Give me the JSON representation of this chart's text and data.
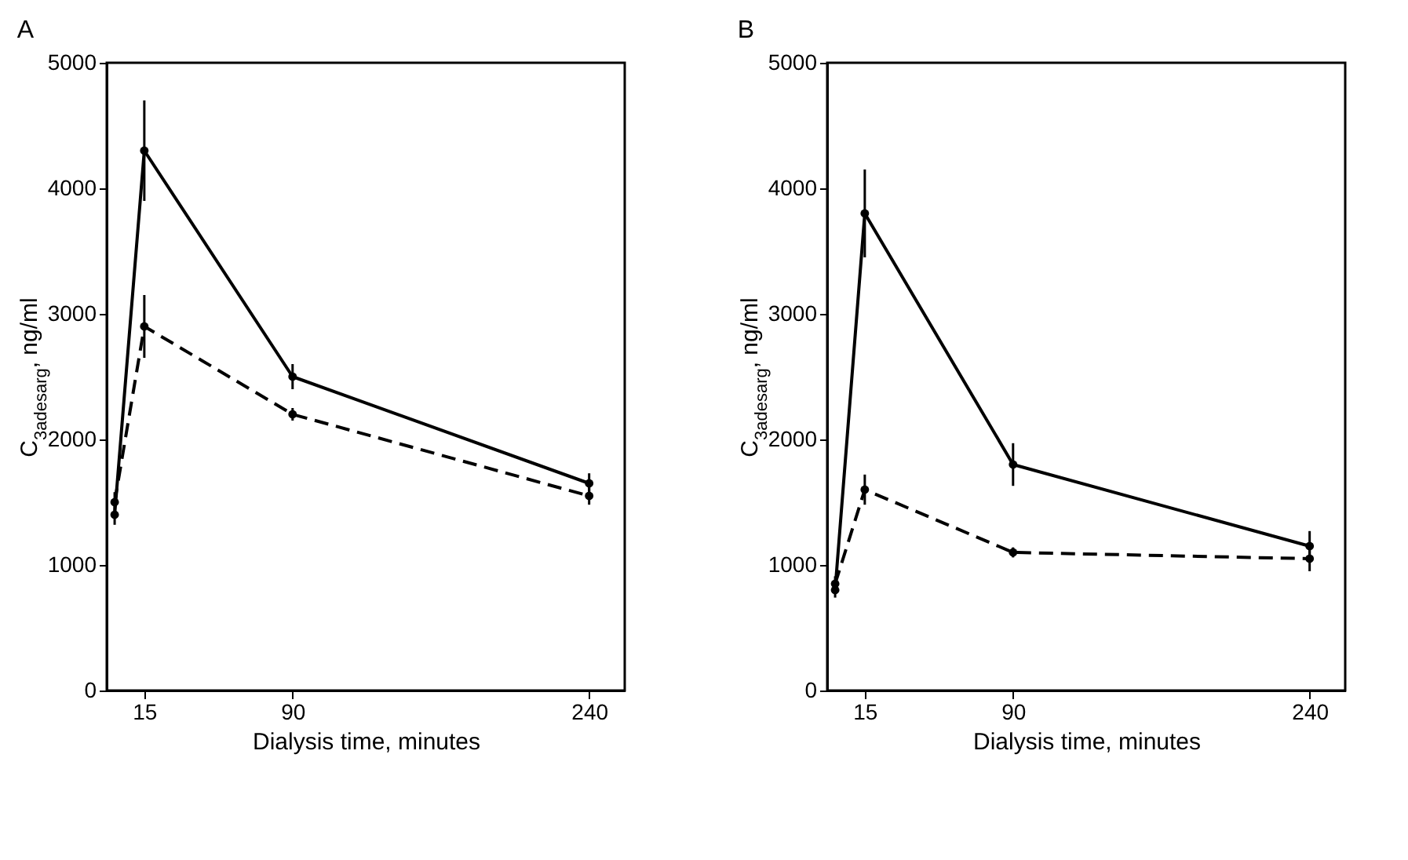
{
  "chart_data": [
    {
      "type": "line",
      "title": "A",
      "xlabel": "Dialysis time, minutes",
      "ylabel": "C$_{3adesarg}$, ng/ml",
      "x": [
        0,
        15,
        90,
        240
      ],
      "xlim": [
        -4,
        258
      ],
      "xticks": [
        15,
        90,
        240
      ],
      "ylim": [
        0,
        5000
      ],
      "yticks": [
        0,
        1000,
        2000,
        3000,
        4000,
        5000
      ],
      "marker": "circle",
      "series": [
        {
          "color": "#000000",
          "line_style": "solid",
          "values": [
            1400,
            4300,
            2500,
            1650
          ],
          "errors": [
            80,
            400,
            100,
            80
          ]
        },
        {
          "color": "#000000",
          "line_style": "dashed",
          "values": [
            1500,
            2900,
            2200,
            1550
          ],
          "errors": [
            80,
            250,
            50,
            70
          ]
        }
      ]
    },
    {
      "type": "line",
      "title": "B",
      "xlabel": "Dialysis time, minutes",
      "ylabel": "C$_{3adesarg}$, ng/ml",
      "x": [
        0,
        15,
        90,
        240
      ],
      "xlim": [
        -4,
        258
      ],
      "xticks": [
        15,
        90,
        240
      ],
      "ylim": [
        0,
        5000
      ],
      "yticks": [
        0,
        1000,
        2000,
        3000,
        4000,
        5000
      ],
      "marker": "circle",
      "series": [
        {
          "color": "#000000",
          "line_style": "solid",
          "values": [
            800,
            3800,
            1800,
            1150
          ],
          "errors": [
            60,
            350,
            170,
            120
          ]
        },
        {
          "color": "#000000",
          "line_style": "dashed",
          "values": [
            850,
            1600,
            1100,
            1050
          ],
          "errors": [
            60,
            120,
            40,
            100
          ]
        }
      ]
    }
  ]
}
